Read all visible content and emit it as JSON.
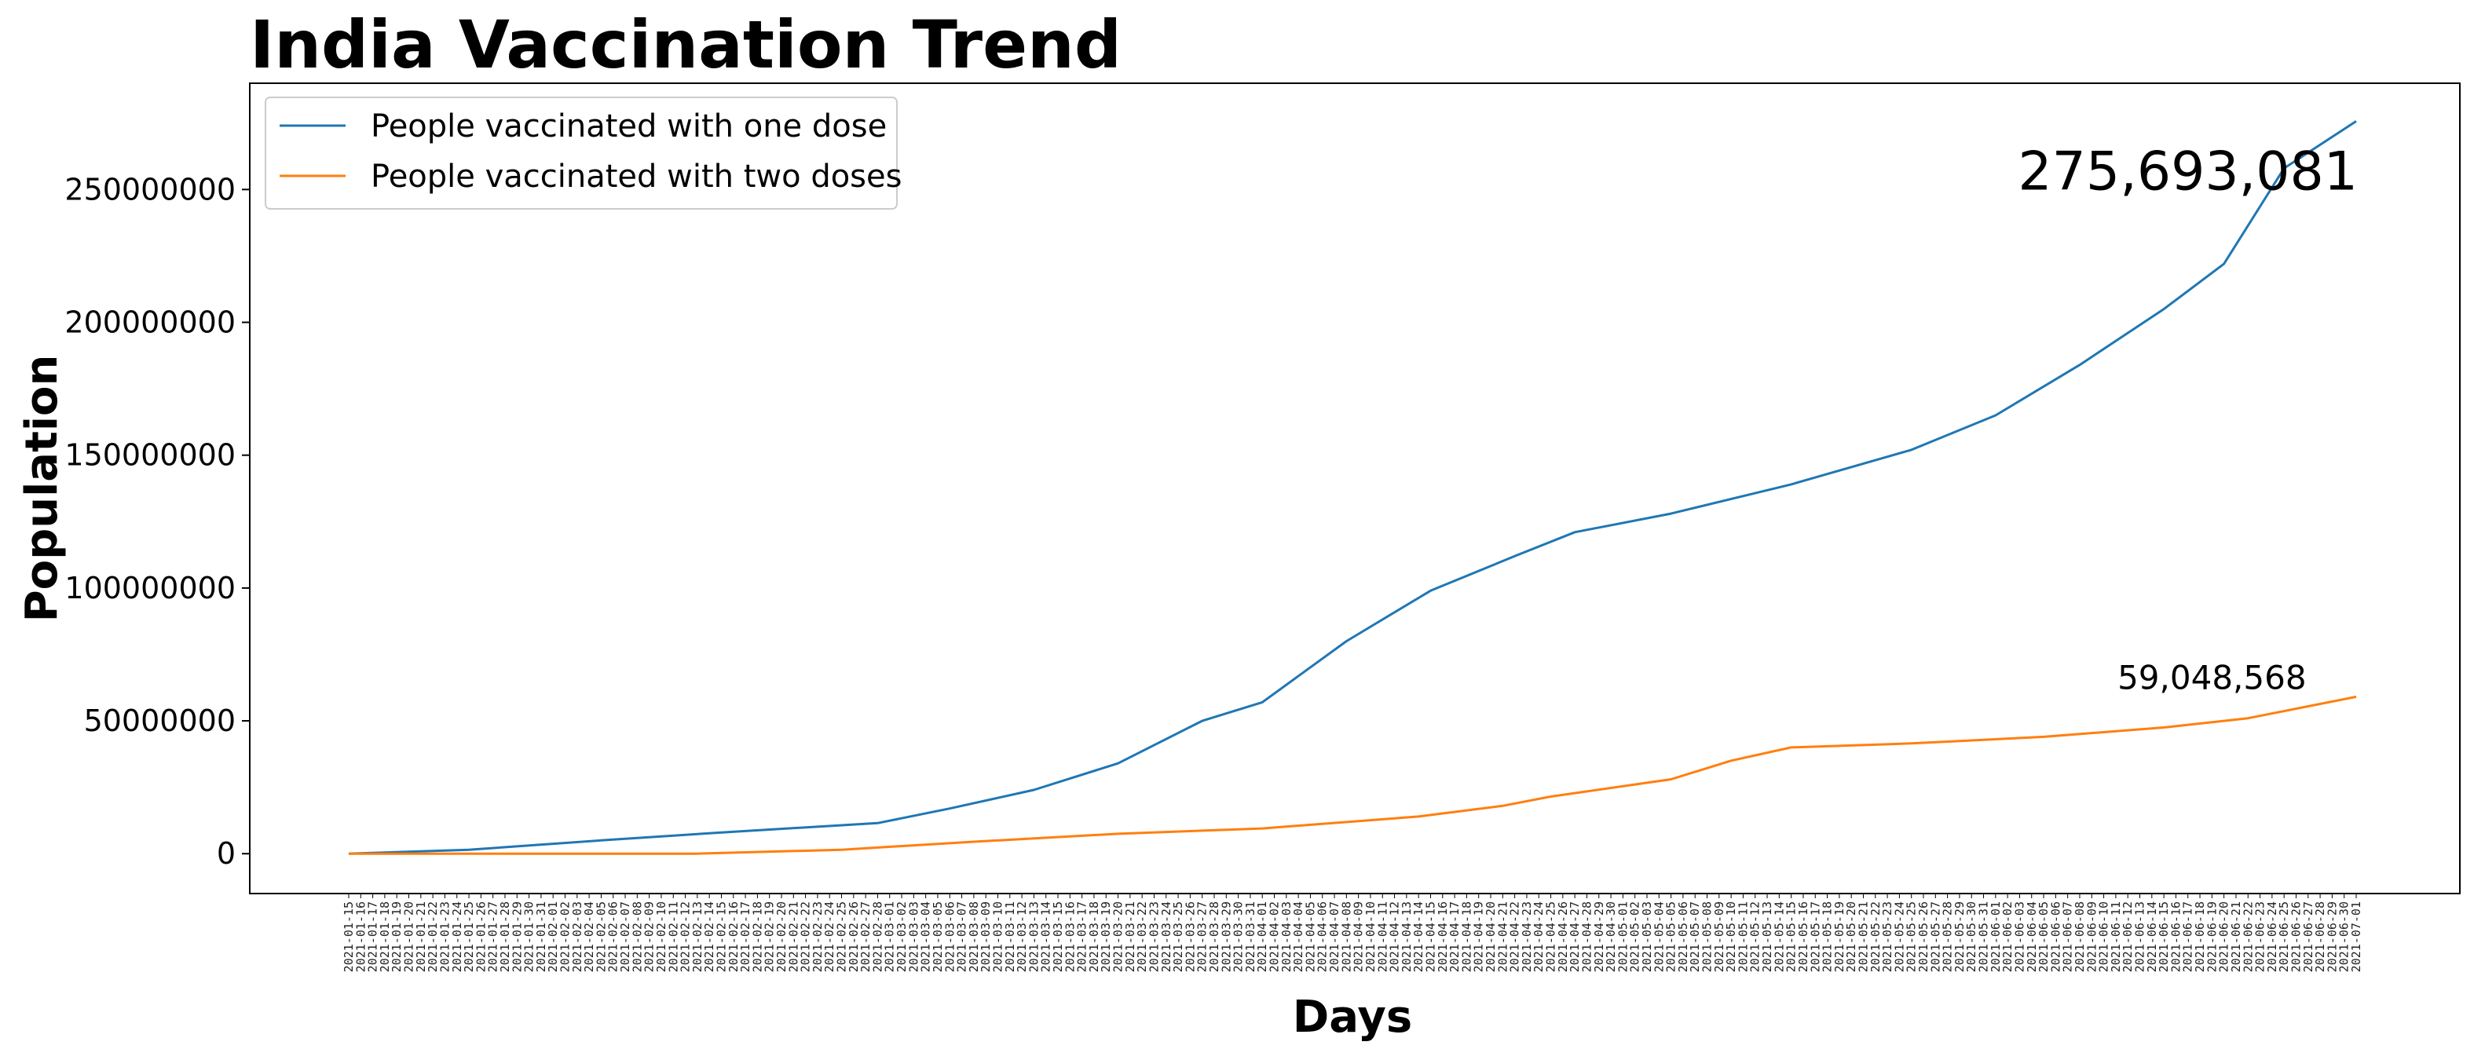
{
  "chart_data": {
    "type": "line",
    "title": "India Vaccination Trend",
    "xlabel": "Days",
    "ylabel": "Population",
    "x_start": "2021-01-15",
    "x_end": "2021-07-01",
    "xlim": [
      "2021-01-15",
      "2021-07-01"
    ],
    "ylim": [
      -15000000,
      290000000
    ],
    "yticks": [
      0,
      50000000,
      100000000,
      150000000,
      200000000,
      250000000
    ],
    "ytick_labels": [
      "0",
      "50000000",
      "100000000",
      "150000000",
      "200000000",
      "250000000"
    ],
    "grid": false,
    "legend_position": "top-left",
    "series": [
      {
        "name": "People vaccinated with one dose",
        "color": "#1f77b4",
        "points": [
          [
            "2021-01-15",
            0
          ],
          [
            "2021-01-25",
            1500000
          ],
          [
            "2021-02-05",
            5000000
          ],
          [
            "2021-02-15",
            8000000
          ],
          [
            "2021-02-28",
            11500000
          ],
          [
            "2021-03-06",
            17000000
          ],
          [
            "2021-03-13",
            24000000
          ],
          [
            "2021-03-20",
            34000000
          ],
          [
            "2021-03-27",
            50000000
          ],
          [
            "2021-04-01",
            57000000
          ],
          [
            "2021-04-08",
            80000000
          ],
          [
            "2021-04-15",
            99000000
          ],
          [
            "2021-04-22",
            112000000
          ],
          [
            "2021-04-27",
            121000000
          ],
          [
            "2021-05-05",
            128000000
          ],
          [
            "2021-05-15",
            139000000
          ],
          [
            "2021-05-25",
            152000000
          ],
          [
            "2021-06-01",
            165000000
          ],
          [
            "2021-06-08",
            184000000
          ],
          [
            "2021-06-15",
            205000000
          ],
          [
            "2021-06-20",
            222000000
          ],
          [
            "2021-06-25",
            258000000
          ],
          [
            "2021-07-01",
            275693081
          ]
        ]
      },
      {
        "name": "People vaccinated with two doses",
        "color": "#ff7f0e",
        "points": [
          [
            "2021-01-15",
            0
          ],
          [
            "2021-02-13",
            0
          ],
          [
            "2021-02-25",
            1500000
          ],
          [
            "2021-03-08",
            4500000
          ],
          [
            "2021-03-20",
            7500000
          ],
          [
            "2021-04-01",
            9500000
          ],
          [
            "2021-04-14",
            14000000
          ],
          [
            "2021-04-21",
            18000000
          ],
          [
            "2021-04-25",
            21500000
          ],
          [
            "2021-05-05",
            28000000
          ],
          [
            "2021-05-10",
            35000000
          ],
          [
            "2021-05-15",
            40000000
          ],
          [
            "2021-05-25",
            41500000
          ],
          [
            "2021-06-05",
            44000000
          ],
          [
            "2021-06-15",
            47500000
          ],
          [
            "2021-06-22",
            51000000
          ],
          [
            "2021-07-01",
            59048568
          ]
        ]
      }
    ],
    "annotations": [
      {
        "text": "275,693,081",
        "series": 0,
        "x": "2021-06-17",
        "y": 250000000,
        "size": "large"
      },
      {
        "text": "59,048,568",
        "series": 1,
        "x": "2021-06-19",
        "y": 62000000,
        "size": "small"
      }
    ]
  }
}
